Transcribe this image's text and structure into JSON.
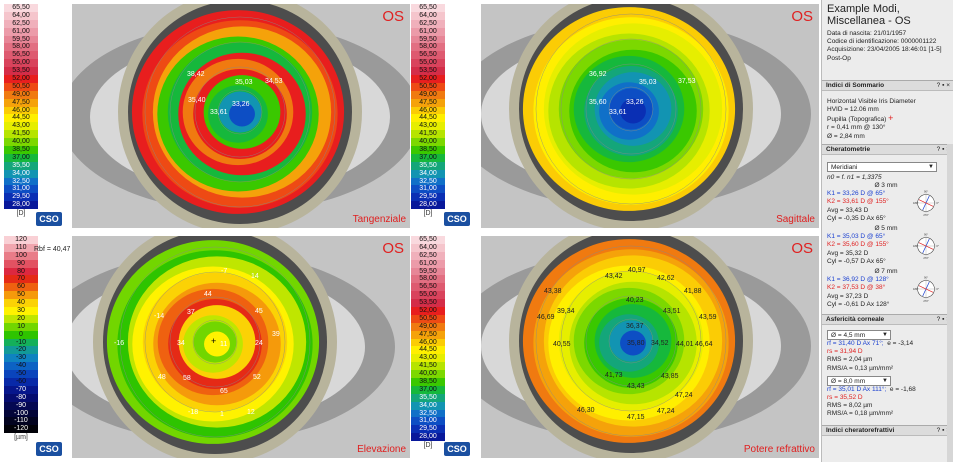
{
  "scale_top_left": {
    "values": [
      "65,50",
      "64,00",
      "62,50",
      "61,00",
      "59,50",
      "58,00",
      "56,50",
      "55,00",
      "53,50",
      "52,00",
      "50,50",
      "49,00",
      "47,50",
      "46,00",
      "44,50",
      "43,00",
      "41,50",
      "40,00",
      "38,50",
      "37,00",
      "35,50",
      "34,00",
      "32,50",
      "31,00",
      "29,50",
      "28,00"
    ],
    "unit": "[D]"
  },
  "scale_top_mid": {
    "values": [
      "65,50",
      "64,00",
      "62,50",
      "61,00",
      "59,50",
      "58,00",
      "56,50",
      "55,00",
      "53,50",
      "52,00",
      "50,50",
      "49,00",
      "47,50",
      "46,00",
      "44,50",
      "43,00",
      "41,50",
      "40,00",
      "38,50",
      "37,00",
      "35,50",
      "34,00",
      "32,50",
      "31,00",
      "29,50",
      "28,00"
    ],
    "unit": "[D]"
  },
  "scale_bot_left": {
    "values": [
      "120",
      "110",
      "100",
      "90",
      "80",
      "70",
      "60",
      "50",
      "40",
      "30",
      "20",
      "10",
      "0",
      "-10",
      "-20",
      "-30",
      "-40",
      "-50",
      "-60",
      "-70",
      "-80",
      "-90",
      "-100",
      "-110",
      "-120"
    ],
    "unit": "[µm]",
    "rbf": "Rbf = 40,47 D"
  },
  "scale_bot_mid": {
    "values": [
      "65,50",
      "64,00",
      "62,50",
      "61,00",
      "59,50",
      "58,00",
      "56,50",
      "55,00",
      "53,50",
      "52,00",
      "50,50",
      "49,00",
      "47,50",
      "46,00",
      "44,50",
      "43,00",
      "41,50",
      "40,00",
      "38,50",
      "37,00",
      "35,50",
      "34,00",
      "32,50",
      "31,00",
      "29,50",
      "28,00"
    ],
    "unit": "[D]"
  },
  "logo": "CSO",
  "colors": {
    "diopter": [
      "#f9d9de",
      "#f5c5cc",
      "#f0b0bb",
      "#ec9ba9",
      "#e78697",
      "#e26f82",
      "#de5a70",
      "#d9435c",
      "#d42d48",
      "#e81e1e",
      "#ee4a14",
      "#f07a10",
      "#f5a20a",
      "#fbcc05",
      "#ffef00",
      "#e6ee00",
      "#b6e400",
      "#7cd800",
      "#3ac800",
      "#16b83c",
      "#14a67a",
      "#1294b2",
      "#1070c8",
      "#0d4ec4",
      "#0a2fb4",
      "#08189a"
    ],
    "elevation": [
      "#f9d0d5",
      "#f1a6af",
      "#e97c88",
      "#e25262",
      "#dc2840",
      "#e52a16",
      "#ef6110",
      "#f59a0b",
      "#fbd205",
      "#fff200",
      "#bfe600",
      "#72d600",
      "#2ec400",
      "#14b05a",
      "#129a98",
      "#0f83c0",
      "#0c62c4",
      "#0a44bc",
      "#0829a8",
      "#06168c",
      "#050c70",
      "#040852",
      "#030538",
      "#02031f",
      "#010108"
    ]
  },
  "maps": [
    {
      "eye": "OS",
      "label": "Tangenziale",
      "values": [
        {
          "t": "38,42"
        },
        {
          "t": "35,03"
        },
        {
          "t": "34,53"
        },
        {
          "t": "35,40"
        },
        {
          "t": "33,26"
        },
        {
          "t": "33,61"
        }
      ]
    },
    {
      "eye": "OS",
      "label": "Sagittale",
      "values": [
        {
          "t": "36,92"
        },
        {
          "t": "35,03"
        },
        {
          "t": "37,53"
        },
        {
          "t": "35,60"
        },
        {
          "t": "33,26"
        },
        {
          "t": "33,61"
        }
      ]
    },
    {
      "eye": "OS",
      "label": "Elevazione",
      "values": [
        {
          "t": "-7"
        },
        {
          "t": "14"
        },
        {
          "t": "44"
        },
        {
          "t": "-14"
        },
        {
          "t": "37"
        },
        {
          "t": "45"
        },
        {
          "t": "39"
        },
        {
          "t": "-16"
        },
        {
          "t": "34"
        },
        {
          "t": "11"
        },
        {
          "t": "24"
        },
        {
          "t": "48"
        },
        {
          "t": "58"
        },
        {
          "t": "52"
        },
        {
          "t": "65"
        },
        {
          "t": "-18"
        },
        {
          "t": "1"
        },
        {
          "t": "12"
        }
      ]
    },
    {
      "eye": "OS",
      "label": "Potere refrattivo",
      "values": [
        {
          "t": "43,42"
        },
        {
          "t": "40,97"
        },
        {
          "t": "42,62"
        },
        {
          "t": "43,38"
        },
        {
          "t": "41,88"
        },
        {
          "t": "39,34"
        },
        {
          "t": "40,23"
        },
        {
          "t": "43,51"
        },
        {
          "t": "46,69"
        },
        {
          "t": "36,37"
        },
        {
          "t": "43,59"
        },
        {
          "t": "40,55"
        },
        {
          "t": "35,80"
        },
        {
          "t": "34,52"
        },
        {
          "t": "44,01"
        },
        {
          "t": "46,64"
        },
        {
          "t": "41,73"
        },
        {
          "t": "43,85"
        },
        {
          "t": "43,43"
        },
        {
          "t": "47,24"
        },
        {
          "t": "46,30"
        },
        {
          "t": "47,15"
        },
        {
          "t": "47,24"
        }
      ]
    }
  ],
  "panel": {
    "title": "Example Modi, Miscellanea - OS",
    "info": [
      "Data di nascita: 21/01/1957",
      "Codice di identificazione: 0000001122",
      "Acquisizione: 23/04/2005 18:46:01 [1-5]",
      "Post-Op"
    ],
    "summary": {
      "header": "Indici di Sommario",
      "hvid_title": "Horizontal Visible Iris Diameter",
      "hvid": "HVID = 12.06 mm",
      "pupil_title": "Pupilla (Topografica)",
      "pupil_r": "r = 0,41 mm @ 130°",
      "pupil_d": "Ø = 2,84 mm"
    },
    "kerato": {
      "header": "Cheratometrie",
      "mode": "Meridiani",
      "n0": "n0 = f. n1 = 1,3375",
      "zones": [
        {
          "zone": "Ø 3 mm",
          "k1": "K1 = 33,26 D  @ 65°",
          "k2": "K2 = 33,61 D  @ 155°",
          "avg": "Avg = 33,43 D",
          "cyl": "Cyl = -0,35 D Ax 65°"
        },
        {
          "zone": "Ø 5 mm",
          "k1": "K1 = 35,03 D  @ 65°",
          "k2": "K2 = 35,60 D  @ 155°",
          "avg": "Avg = 35,32 D",
          "cyl": "Cyl = -0,57 D Ax 65°"
        },
        {
          "zone": "Ø 7 mm",
          "k1": "K1 = 36,92 D  @ 128°",
          "k2": "K2 = 37,53 D  @ 38°",
          "avg": "Avg = 37,23 D",
          "cyl": "Cyl = -0,61 D Ax 128°"
        }
      ],
      "axis": {
        "top": "90°",
        "bottom": "270°",
        "right": "0°",
        "left": "180°"
      }
    },
    "aspher": {
      "header": "Asfericità corneale",
      "blocks": [
        {
          "dd": "Ø = 4,5 mm",
          "rf": "rf = 31,40 D Ax 71°;",
          "e": "e = -3,14",
          "rs": "rs = 31,94 D",
          "rms": "RMS = 2,04 µm",
          "rmsa": "RMS/A = 0,13 µm/mm²"
        },
        {
          "dd": "Ø = 8,0 mm",
          "rf": "rf = 35,01 D Ax 111°;",
          "e": "e = -1,68",
          "rs": "rs = 35,52 D",
          "rms": "RMS = 8,02 µm",
          "rmsa": "RMS/A = 0,18 µm/mm²"
        }
      ]
    },
    "refr": {
      "header": "Indici cheratorefrattivi"
    },
    "ctrls": "? ▪ ×"
  }
}
